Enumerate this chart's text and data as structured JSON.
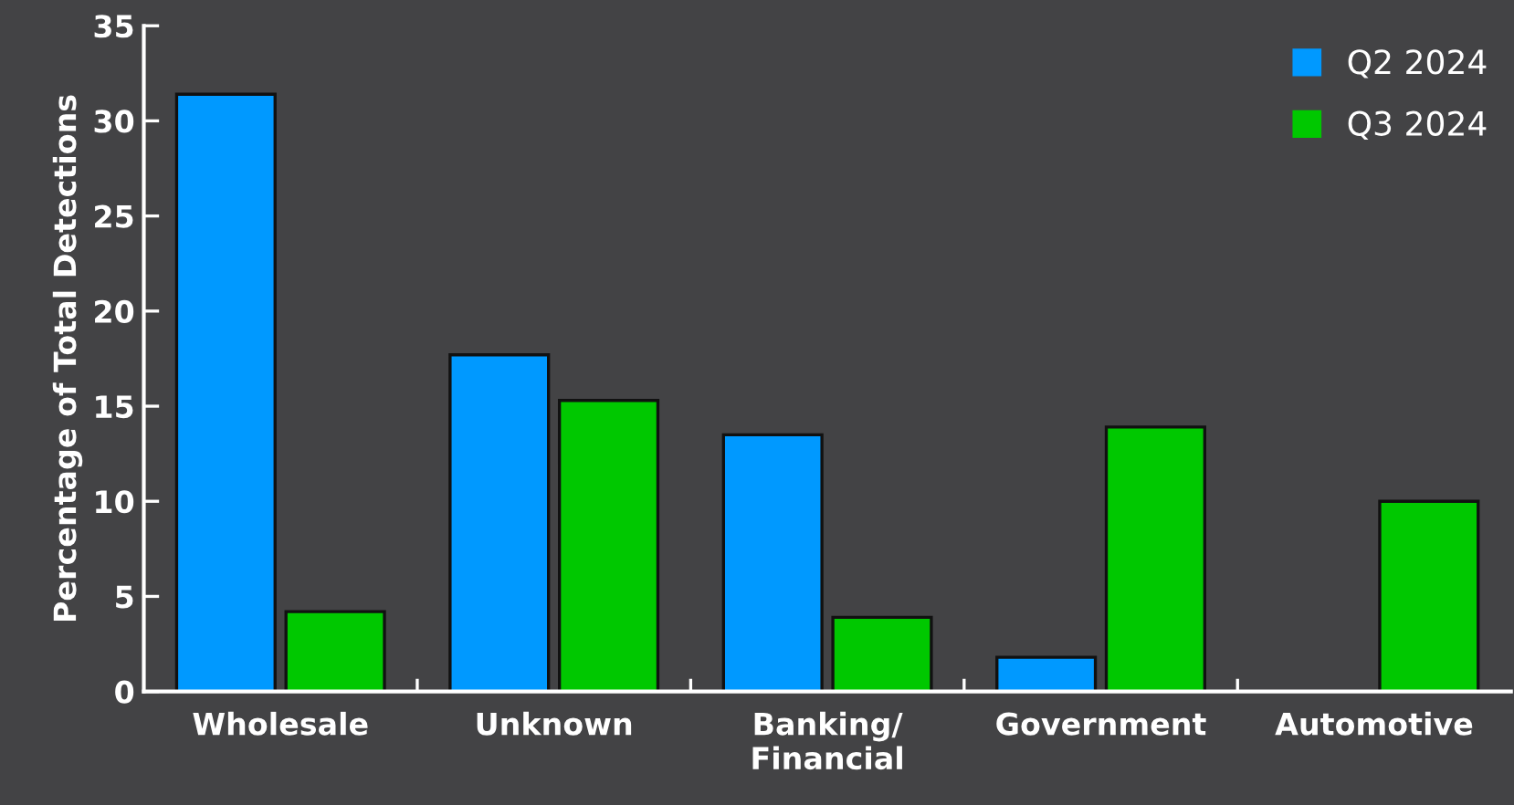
{
  "chart_data": {
    "type": "bar",
    "ylabel": "Percentage of Total Detections",
    "categories": [
      "Wholesale",
      "Unknown",
      "Banking/\nFinancial",
      "Government",
      "Automotive"
    ],
    "series": [
      {
        "name": "Q2 2024",
        "color": "#0099ff",
        "values": [
          31.4,
          17.7,
          13.5,
          1.8,
          0
        ]
      },
      {
        "name": "Q3 2024",
        "color": "#00c800",
        "values": [
          4.2,
          15.3,
          3.9,
          13.9,
          10.0
        ]
      }
    ],
    "ylim": [
      0,
      35
    ],
    "yticks": [
      0,
      5,
      10,
      15,
      20,
      25,
      30,
      35
    ],
    "grid": false,
    "legend": "top right"
  }
}
